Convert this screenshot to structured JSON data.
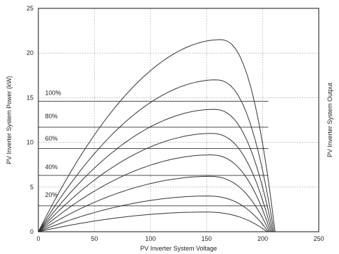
{
  "chart_data": {
    "type": "line",
    "xlabel": "PV Inverter System Voltage",
    "ylabel": "PV Inverter System Power (kW)",
    "y2label": "PV Inverter System Output",
    "xlim": [
      0,
      250
    ],
    "ylim": [
      0,
      25
    ],
    "xticks": [
      "0",
      "50",
      "100",
      "150",
      "200",
      "250"
    ],
    "yticks": [
      "0",
      "5",
      "10",
      "15",
      "20",
      "25"
    ],
    "grid": true,
    "hlines": [
      14.6,
      11.7,
      9.3,
      6.3,
      2.9
    ],
    "annotations": [
      {
        "text": "100%",
        "x": 6,
        "y": 15.3
      },
      {
        "text": "80%",
        "x": 6,
        "y": 12.7
      },
      {
        "text": "60%",
        "x": 6,
        "y": 10.2
      },
      {
        "text": "40%",
        "x": 6,
        "y": 7.0
      },
      {
        "text": "20%",
        "x": 6,
        "y": 3.9
      }
    ],
    "series": [
      {
        "voc": 211,
        "peak_v": 162,
        "peak_p": 21.5
      },
      {
        "voc": 210,
        "peak_v": 158,
        "peak_p": 17.0
      },
      {
        "voc": 209,
        "peak_v": 156,
        "peak_p": 13.7
      },
      {
        "voc": 208,
        "peak_v": 154,
        "peak_p": 11.0
      },
      {
        "voc": 207,
        "peak_v": 153,
        "peak_p": 8.6
      },
      {
        "voc": 206,
        "peak_v": 152,
        "peak_p": 6.2
      },
      {
        "voc": 205,
        "peak_v": 150,
        "peak_p": 4.0
      },
      {
        "voc": 204,
        "peak_v": 148,
        "peak_p": 2.2
      }
    ]
  }
}
